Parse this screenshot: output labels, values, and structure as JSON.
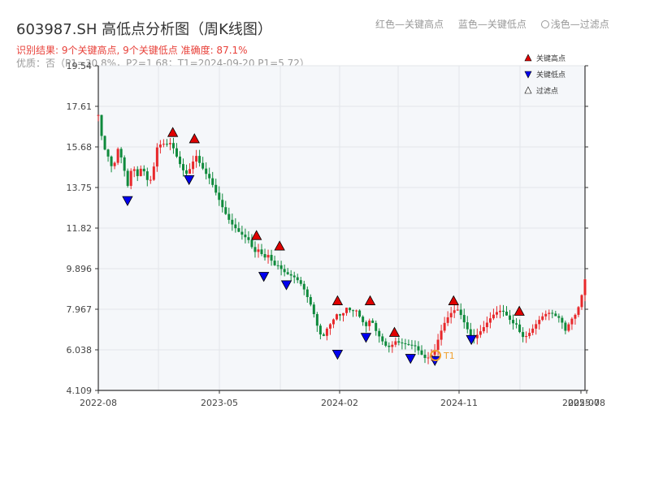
{
  "header": {
    "title": "603987.SH 高低点分析图（周K线图）",
    "result_text": "识别结果: 9个关键高点, 9个关键低点   准确度: 87.1%",
    "quality_text": "优质：否（P1=30.8%，P2=1.68；T1=2024-09-20 P1=5.72）"
  },
  "top_legend": {
    "red_label": "红色—关键高点",
    "blue_label": "蓝色—关键低点",
    "light_label": "浅色—过滤点"
  },
  "colors": {
    "up": "#e8282b",
    "down": "#0f8a3c",
    "high_marker": "#e00000",
    "low_marker": "#0000ee",
    "t1_marker": "#f0a030",
    "plot_bg": "#f5f7fa",
    "grid": "#e2e5ea",
    "axis": "#333333"
  },
  "chart_data": {
    "type": "candlestick",
    "title": "603987.SH 高低点分析图（周K线图）",
    "xlabel": "",
    "ylabel": "",
    "ylim": [
      4.109,
      19.54
    ],
    "y_ticks": [
      "19.54",
      "17.61",
      "15.68",
      "13.75",
      "11.82",
      "9.896",
      "7.967",
      "6.038",
      "4.109"
    ],
    "x_ticks": [
      "2022-08",
      "2023-05",
      "2024-02",
      "2024-11",
      "2025-07",
      "2025-08"
    ],
    "legend": [
      "关键高点",
      "关键低点",
      "过滤点"
    ],
    "grid": true,
    "annotations": [
      {
        "label": "T1",
        "date": "2024-09-20",
        "price": 5.72
      }
    ],
    "key_highs": [
      {
        "x_frac": 0.306,
        "price": 16.1
      },
      {
        "x_frac": 0.395,
        "price": 15.8
      },
      {
        "x_frac": 0.65,
        "price": 11.2
      },
      {
        "x_frac": 0.745,
        "price": 10.7
      },
      {
        "x_frac": 0.983,
        "price": 8.1
      },
      {
        "x_frac": 1.117,
        "price": 8.1
      },
      {
        "x_frac": 1.217,
        "price": 6.6
      },
      {
        "x_frac": 1.46,
        "price": 8.1
      },
      {
        "x_frac": 1.73,
        "price": 7.6
      }
    ],
    "key_lows": [
      {
        "x_frac": 0.12,
        "price": 13.4
      },
      {
        "x_frac": 0.373,
        "price": 14.4
      },
      {
        "x_frac": 0.68,
        "price": 9.8
      },
      {
        "x_frac": 0.773,
        "price": 9.4
      },
      {
        "x_frac": 0.983,
        "price": 6.1
      },
      {
        "x_frac": 1.1,
        "price": 6.9
      },
      {
        "x_frac": 1.283,
        "price": 5.9
      },
      {
        "x_frac": 1.383,
        "price": 5.8
      },
      {
        "x_frac": 1.533,
        "price": 6.8
      }
    ],
    "close_path": [
      [
        0,
        17.2
      ],
      [
        0.02,
        15.5
      ],
      [
        0.04,
        14.9
      ],
      [
        0.06,
        14.2
      ],
      [
        0.08,
        15.4
      ],
      [
        0.1,
        15.0
      ],
      [
        0.12,
        14.0
      ],
      [
        0.14,
        15.2
      ],
      [
        0.16,
        14.6
      ],
      [
        0.18,
        15.0
      ],
      [
        0.2,
        14.1
      ],
      [
        0.22,
        13.9
      ],
      [
        0.24,
        15.3
      ],
      [
        0.26,
        15.5
      ],
      [
        0.28,
        15.6
      ],
      [
        0.3,
        15.9
      ],
      [
        0.32,
        15.5
      ],
      [
        0.34,
        15.1
      ],
      [
        0.36,
        14.7
      ],
      [
        0.38,
        14.9
      ],
      [
        0.4,
        15.3
      ],
      [
        0.42,
        14.6
      ],
      [
        0.44,
        14.1
      ],
      [
        0.46,
        13.8
      ],
      [
        0.48,
        13.4
      ],
      [
        0.5,
        13.1
      ],
      [
        0.52,
        12.8
      ],
      [
        0.54,
        12.5
      ],
      [
        0.56,
        12.2
      ],
      [
        0.58,
        11.8
      ],
      [
        0.6,
        11.4
      ],
      [
        0.62,
        11.0
      ],
      [
        0.64,
        10.3
      ],
      [
        0.66,
        10.5
      ],
      [
        0.68,
        10.2
      ],
      [
        0.7,
        10.6
      ],
      [
        0.72,
        10.3
      ],
      [
        0.74,
        10.4
      ],
      [
        0.76,
        10.1
      ],
      [
        0.78,
        9.8
      ],
      [
        0.8,
        9.5
      ],
      [
        0.82,
        9.1
      ],
      [
        0.84,
        8.7
      ],
      [
        0.86,
        8.2
      ],
      [
        0.88,
        7.8
      ],
      [
        0.9,
        7.2
      ],
      [
        0.92,
        6.8
      ],
      [
        0.94,
        7.4
      ],
      [
        0.96,
        7.7
      ],
      [
        0.98,
        7.9
      ],
      [
        1.0,
        7.6
      ],
      [
        1.02,
        7.8
      ],
      [
        1.04,
        7.5
      ],
      [
        1.06,
        7.6
      ],
      [
        1.08,
        7.3
      ],
      [
        1.1,
        7.2
      ],
      [
        1.12,
        7.8
      ],
      [
        1.14,
        7.3
      ],
      [
        1.16,
        6.9
      ],
      [
        1.18,
        6.4
      ],
      [
        1.2,
        6.1
      ],
      [
        1.22,
        6.2
      ],
      [
        1.24,
        6.0
      ],
      [
        1.26,
        6.0
      ],
      [
        1.28,
        6.1
      ],
      [
        1.3,
        6.3
      ],
      [
        1.32,
        6.2
      ],
      [
        1.34,
        6.0
      ],
      [
        1.36,
        6.0
      ],
      [
        1.38,
        6.1
      ],
      [
        1.4,
        6.6
      ],
      [
        1.42,
        7.0
      ],
      [
        1.44,
        7.3
      ],
      [
        1.46,
        7.6
      ],
      [
        1.48,
        7.8
      ],
      [
        1.5,
        7.5
      ],
      [
        1.52,
        7.2
      ],
      [
        1.54,
        6.9
      ],
      [
        1.56,
        7.1
      ],
      [
        1.58,
        7.2
      ],
      [
        1.6,
        7.3
      ],
      [
        1.62,
        7.4
      ],
      [
        1.64,
        7.5
      ],
      [
        1.66,
        7.6
      ],
      [
        1.68,
        7.5
      ],
      [
        1.7,
        7.4
      ],
      [
        1.72,
        7.5
      ],
      [
        1.74,
        7.0
      ],
      [
        1.76,
        7.0
      ],
      [
        1.78,
        7.1
      ],
      [
        1.8,
        7.2
      ],
      [
        1.82,
        7.3
      ],
      [
        1.84,
        7.4
      ],
      [
        1.86,
        7.5
      ],
      [
        1.88,
        7.5
      ],
      [
        1.9,
        7.6
      ],
      [
        1.92,
        7.2
      ],
      [
        1.94,
        7.8
      ],
      [
        1.96,
        8.0
      ],
      [
        1.98,
        8.4
      ],
      [
        2.0,
        9.3
      ]
    ]
  }
}
